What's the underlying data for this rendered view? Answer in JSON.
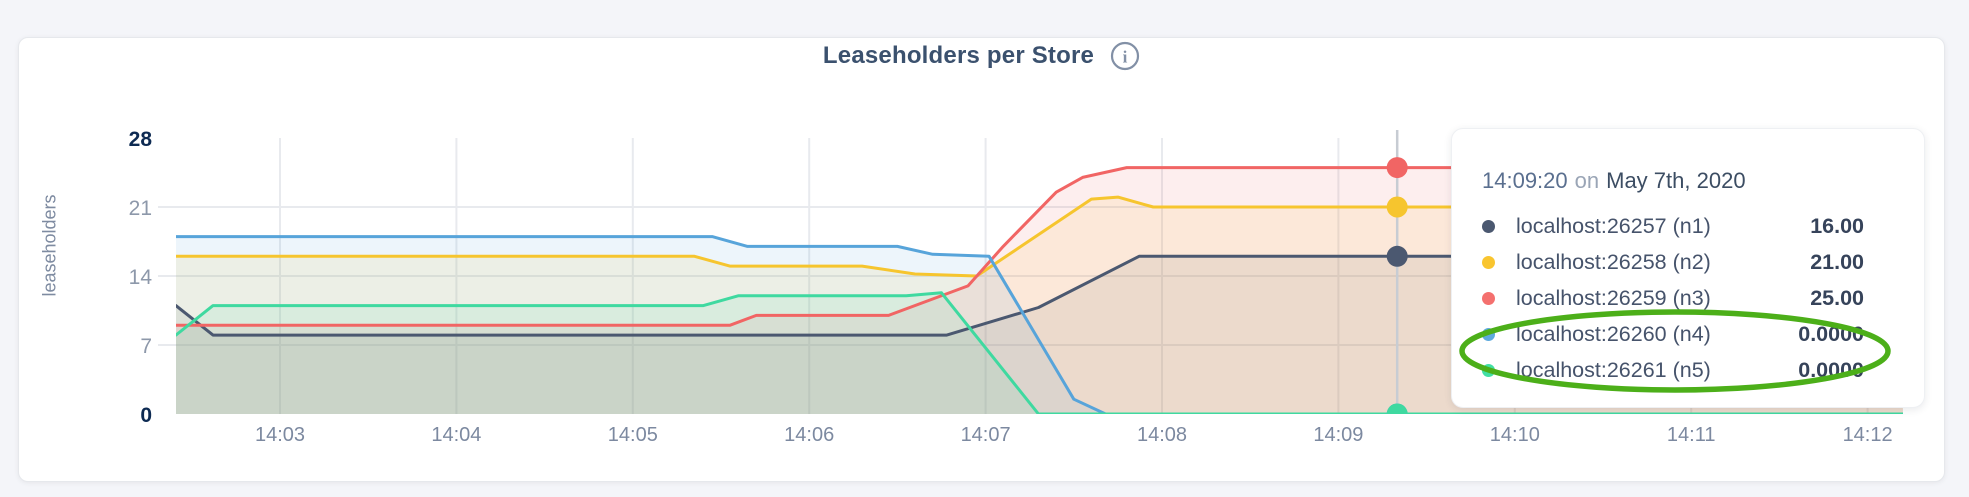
{
  "chart": {
    "title": "Leaseholders per Store",
    "info_icon_glyph": "i"
  },
  "chart_data": {
    "type": "area",
    "title": "Leaseholders per Store",
    "xlabel": "",
    "ylabel": "leaseholders",
    "x_ticks": [
      "14:03",
      "14:04",
      "14:05",
      "14:06",
      "14:07",
      "14:08",
      "14:09",
      "14:10",
      "14:11",
      "14:12"
    ],
    "x_start_minute": 3,
    "y_ticks": [
      0,
      7,
      14,
      21,
      28
    ],
    "ylim": [
      0,
      28
    ],
    "x_domain_minutes": [
      2.41,
      12.2
    ],
    "grid": true,
    "legend_position": "tooltip",
    "series": [
      {
        "name": "localhost:26257 (n1)",
        "color": "#4b5870",
        "points": [
          [
            2.41,
            11
          ],
          [
            2.62,
            8
          ],
          [
            6.78,
            8
          ],
          [
            7.3,
            10.8
          ],
          [
            7.87,
            16
          ],
          [
            12.2,
            16
          ]
        ]
      },
      {
        "name": "localhost:26258 (n2)",
        "color": "#f6c52e",
        "points": [
          [
            2.41,
            16
          ],
          [
            5.35,
            16
          ],
          [
            5.55,
            15
          ],
          [
            6.3,
            15
          ],
          [
            6.6,
            14.2
          ],
          [
            6.95,
            14
          ],
          [
            7.6,
            21.8
          ],
          [
            7.75,
            22
          ],
          [
            7.95,
            21
          ],
          [
            12.2,
            21
          ]
        ]
      },
      {
        "name": "localhost:26259 (n3)",
        "color": "#f16564",
        "points": [
          [
            2.41,
            9
          ],
          [
            5.55,
            9
          ],
          [
            5.7,
            10
          ],
          [
            6.45,
            10
          ],
          [
            6.9,
            13
          ],
          [
            7.1,
            17
          ],
          [
            7.4,
            22.5
          ],
          [
            7.55,
            24
          ],
          [
            7.8,
            25
          ],
          [
            12.2,
            25
          ]
        ]
      },
      {
        "name": "localhost:26260 (n4)",
        "color": "#57a4da",
        "points": [
          [
            2.41,
            18
          ],
          [
            5.45,
            18
          ],
          [
            5.65,
            17
          ],
          [
            6.5,
            17
          ],
          [
            6.7,
            16.2
          ],
          [
            7.02,
            16
          ],
          [
            7.5,
            1.5
          ],
          [
            7.68,
            0
          ],
          [
            12.2,
            0
          ]
        ]
      },
      {
        "name": "localhost:26261 (n5)",
        "color": "#3fd9a0",
        "points": [
          [
            2.41,
            8
          ],
          [
            2.62,
            11
          ],
          [
            5.4,
            11
          ],
          [
            5.6,
            12
          ],
          [
            6.55,
            12
          ],
          [
            6.75,
            12.3
          ],
          [
            7.3,
            0
          ],
          [
            12.2,
            0
          ]
        ]
      }
    ],
    "hover": {
      "label": "14:09:20",
      "time_minutes": 9.3333,
      "values": [
        16,
        21,
        25,
        0,
        0
      ]
    }
  },
  "tooltip": {
    "time": "14:09:20",
    "separator": "on",
    "date": "May 7th, 2020",
    "rows": [
      {
        "label": "localhost:26257 (n1)",
        "value": "16.00",
        "color": "#4b5870"
      },
      {
        "label": "localhost:26258 (n2)",
        "value": "21.00",
        "color": "#f9c52f"
      },
      {
        "label": "localhost:26259 (n3)",
        "value": "25.00",
        "color": "#f4706e"
      },
      {
        "label": "localhost:26260 (n4)",
        "value": "0.0000",
        "color": "#5da9dd"
      },
      {
        "label": "localhost:26261 (n5)",
        "value": "0.0000",
        "color": "#42dfa4"
      }
    ],
    "annotation_color": "#4caf19"
  },
  "colors": {
    "page_bg": "#f4f5f9",
    "card_bg": "#ffffff",
    "grid_line": "#e8eaee",
    "hover_line": "#c7ccd3",
    "axis_tick_bold": "#0d2a52",
    "axis_tick_minor": "#8d98aa",
    "x_tick": "#7c89a0",
    "title": "#3b516e",
    "info_icon": "#8290a6"
  }
}
